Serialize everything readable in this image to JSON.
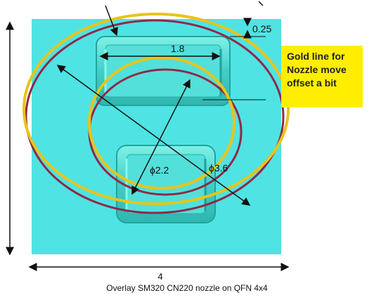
{
  "diagram": {
    "caption": "Overlay SM320 CN220 nozzle on QFN 4x4",
    "callout": "Gold line for Nozzle move offset a bit",
    "dimensions": {
      "width": "4",
      "pad_width": "1.8",
      "gap": "0.25",
      "inner_diameter": "ϕ2.2",
      "outer_diameter": "ϕ3.6"
    }
  },
  "colors": {
    "package": "#4fe3e3",
    "pad": "#3fcfcf",
    "gold": "#e8c41a",
    "maroon": "#8e2a48",
    "callout": "#ffee00"
  }
}
